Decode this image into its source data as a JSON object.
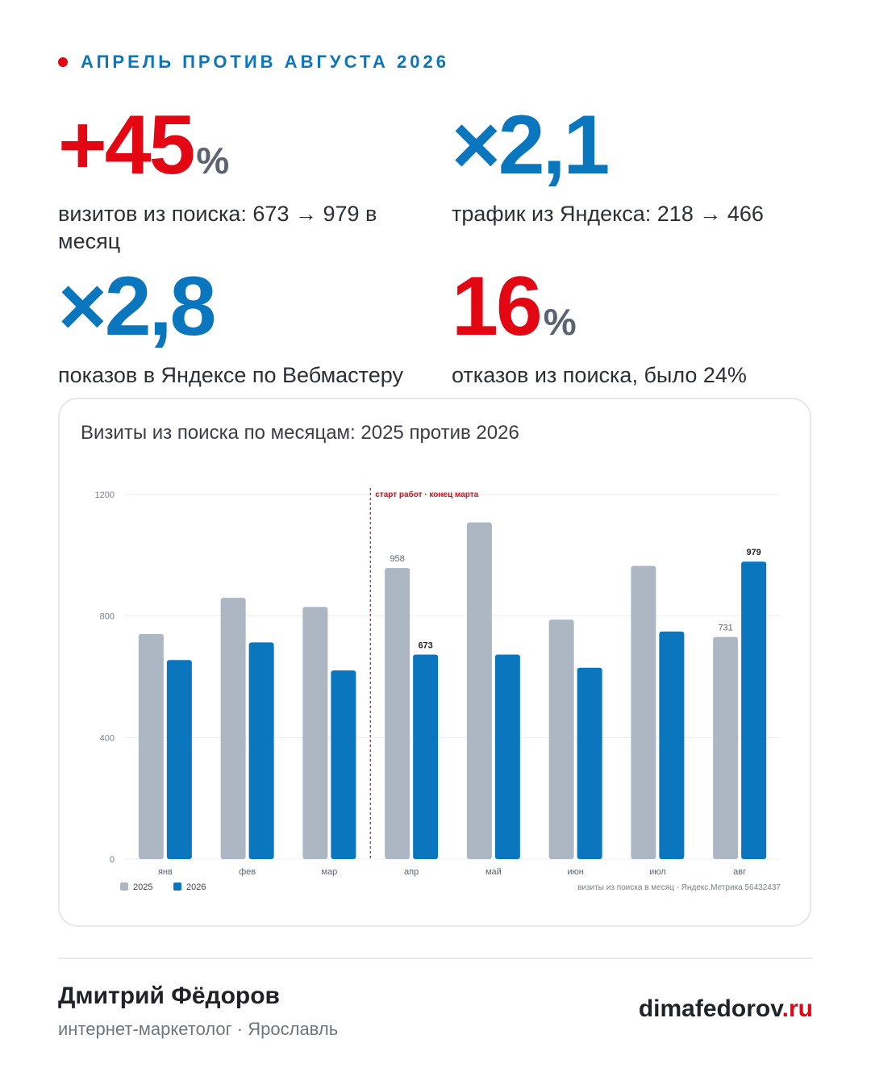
{
  "header": {
    "title": "АПРЕЛЬ ПРОТИВ АВГУСТА 2026"
  },
  "stats": [
    {
      "value": "+45",
      "suffix": "%",
      "desc": "визитов из поиска: 673 → 979 в месяц"
    },
    {
      "value": "×2,1",
      "suffix": "",
      "desc": "трафик из Яндекса: 218 → 466"
    },
    {
      "value": "×2,8",
      "suffix": "",
      "desc": "показов в Яндексе по Вебмастеру"
    },
    {
      "value": "16",
      "suffix": "%",
      "desc": "отказов из поиска, было 24%"
    }
  ],
  "chart_data": {
    "type": "bar",
    "title": "Визиты из поиска по месяцам: 2025 против 2026",
    "categories": [
      "янв",
      "фев",
      "мар",
      "апр",
      "май",
      "июн",
      "июл",
      "авг"
    ],
    "series": [
      {
        "name": "2025",
        "color": "#adb7c3",
        "values": [
          741,
          860,
          830,
          958,
          1108,
          788,
          965,
          731
        ]
      },
      {
        "name": "2026",
        "color": "#0a76be",
        "values": [
          655,
          713,
          621,
          673,
          673,
          630,
          749,
          979
        ]
      }
    ],
    "ylim": [
      0,
      1200
    ],
    "yticks": [
      "0",
      "400",
      "800",
      "1200"
    ],
    "ytick_values": [
      0,
      400,
      800,
      1200
    ],
    "annotation": {
      "text": "старт работ · конец марта",
      "between": [
        "мар",
        "апр"
      ],
      "color": "#e30613"
    },
    "data_labels": [
      {
        "series": 0,
        "index": 3,
        "text": "958"
      },
      {
        "series": 1,
        "index": 3,
        "text": "673"
      },
      {
        "series": 0,
        "index": 7,
        "text": "731"
      },
      {
        "series": 1,
        "index": 7,
        "text": "979"
      }
    ],
    "legend_position": "bottom-left",
    "source": "визиты из поиска в месяц · Яндекс.Метрика 56432437",
    "grid": true
  },
  "footer": {
    "name": "Дмитрий Фёдоров",
    "role": "интернет-маркетолог · Ярославль",
    "site_main": "dimafedorov",
    "site_tld": ".ru"
  }
}
